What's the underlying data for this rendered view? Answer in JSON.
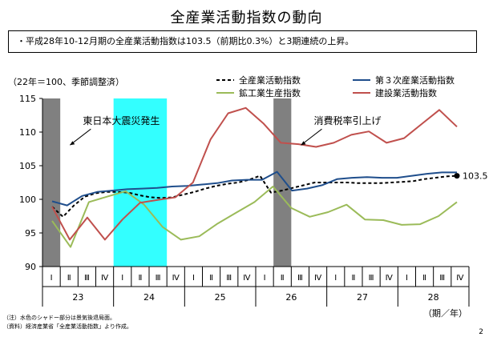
{
  "page": {
    "title": "全産業活動指数の動向",
    "summary": "・平成28年10-12月期の全産業活動指数は103.5（前期比0.3%）と3期連続の上昇。",
    "unit_note": "（22年＝100、季節調整済）",
    "notes": [
      "（注）水色のシャドー部分は景気後退局面。",
      "（資料）経済産業省「全産業活動指数」より作成。"
    ],
    "page_number": "2"
  },
  "chart_data": {
    "type": "line",
    "ylim": [
      90,
      115
    ],
    "yticks": [
      90,
      95,
      100,
      105,
      110,
      115
    ],
    "quarter_labels": [
      "Ⅰ",
      "Ⅱ",
      "Ⅲ",
      "Ⅳ",
      "Ⅰ",
      "Ⅱ",
      "Ⅲ",
      "Ⅳ",
      "Ⅰ",
      "Ⅱ",
      "Ⅲ",
      "Ⅳ",
      "Ⅰ",
      "Ⅱ",
      "Ⅲ",
      "Ⅳ",
      "Ⅰ",
      "Ⅱ",
      "Ⅲ",
      "Ⅳ",
      "Ⅰ",
      "Ⅱ",
      "Ⅲ",
      "Ⅳ"
    ],
    "year_labels": [
      {
        "label": "23",
        "quarter": 1.5
      },
      {
        "label": "24",
        "quarter": 5.5
      },
      {
        "label": "25",
        "quarter": 9.5
      },
      {
        "label": "26",
        "quarter": 13.5
      },
      {
        "label": "27",
        "quarter": 17.5
      },
      {
        "label": "28",
        "quarter": 21.5
      }
    ],
    "axis_unit": "（期／年）",
    "monthly_points_per_quarter": 3,
    "series": [
      {
        "name": "全産業活動指数",
        "color": "#000000",
        "dash": "4,3",
        "width": 2,
        "values": [
          98.9,
          97.4,
          99.1,
          100.4,
          100.9,
          101.1,
          101.1,
          101.0,
          100.6,
          100.3,
          100.2,
          100.3,
          100.7,
          101.1,
          101.6,
          102.0,
          102.3,
          102.5,
          102.9,
          103.5,
          101.0,
          101.3,
          101.7,
          102.1,
          102.5,
          102.5,
          102.5,
          102.5,
          102.4,
          102.4,
          102.4,
          102.5,
          102.6,
          102.7,
          103.0,
          103.2,
          103.4,
          103.5
        ]
      },
      {
        "name": "第３次産業活動指数",
        "color": "#1f4e8c",
        "dash": "",
        "width": 2,
        "values": [
          99.7,
          99.1,
          100.5,
          101.1,
          101.3,
          101.5,
          101.6,
          101.7,
          101.9,
          102.0,
          102.2,
          102.4,
          102.8,
          102.9,
          102.9,
          104.1,
          101.3,
          101.6,
          102.1,
          103.0,
          103.2,
          103.3,
          103.2,
          103.2,
          103.5,
          103.8,
          104.0,
          104.0
        ]
      },
      {
        "name": "鉱工業生産指数",
        "color": "#9bbb59",
        "dash": "",
        "width": 2,
        "values": [
          96.8,
          92.9,
          99.6,
          100.4,
          101.2,
          99.2,
          95.9,
          94.0,
          94.5,
          96.4,
          98.0,
          99.6,
          101.9,
          98.7,
          97.4,
          98.1,
          99.2,
          97.0,
          96.9,
          96.2,
          96.3,
          97.5,
          99.6
        ]
      },
      {
        "name": "建設業活動指数",
        "color": "#c0504d",
        "dash": "",
        "width": 2,
        "values": [
          98.9,
          94.0,
          97.3,
          94.0,
          97.0,
          99.5,
          99.9,
          100.3,
          102.5,
          108.9,
          112.8,
          113.6,
          111.3,
          108.4,
          108.2,
          107.8,
          108.4,
          109.6,
          110.1,
          108.4,
          109.1,
          111.2,
          113.3,
          110.8
        ]
      }
    ],
    "shaded_periods": [
      {
        "from_quarter": 0,
        "to_quarter": 1,
        "color": "#808080"
      },
      {
        "from_quarter": 4,
        "to_quarter": 7,
        "color": "#33ffff"
      },
      {
        "from_quarter": 13,
        "to_quarter": 14,
        "color": "#808080"
      }
    ],
    "annotations": [
      {
        "text": "東日本大震災発生",
        "quarter": 2.0,
        "y": 112.0
      },
      {
        "text": "消費税率引上げ",
        "quarter": 15.0,
        "y": 112.0
      }
    ],
    "end_label": "103.5",
    "legend_placement": "top-right"
  }
}
